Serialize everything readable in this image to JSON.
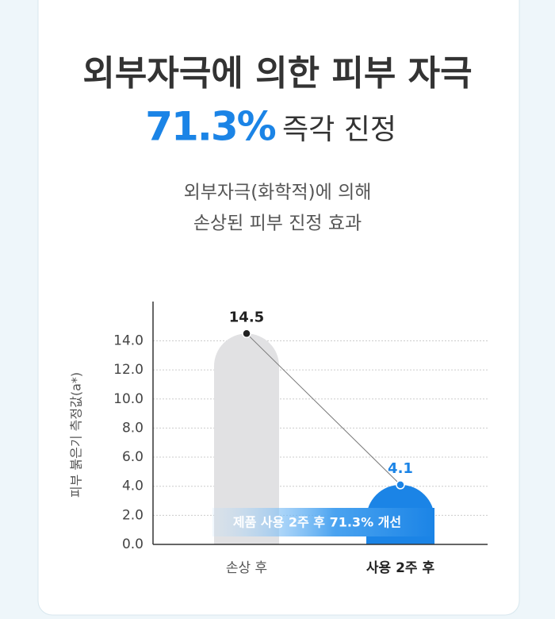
{
  "header": {
    "title": "외부자극에 의한 피부 자극",
    "highlight": "71.3%",
    "title_suffix": "즉각 진정",
    "description": [
      "외부자극(화학적)에 의해",
      "손상된 피부 진정 효과"
    ]
  },
  "chart_data": {
    "type": "bar",
    "ylabel": "피부 붉은기 측정값(a*)",
    "categories": [
      "손상 후",
      "사용 2주 후"
    ],
    "values": [
      14.5,
      4.1
    ],
    "colors": [
      "#e1e1e3",
      "#1b84e6"
    ],
    "ylim": [
      0,
      16.7
    ],
    "yticks": [
      {
        "value": 0,
        "label": "0.0"
      },
      {
        "value": 2,
        "label": "2.0"
      },
      {
        "value": 4,
        "label": "4.0"
      },
      {
        "value": 6,
        "label": "6.0"
      },
      {
        "value": 8,
        "label": "8.0"
      },
      {
        "value": 10,
        "label": "10.0"
      },
      {
        "value": 12,
        "label": "12.0"
      },
      {
        "value": 14,
        "label": "14.0"
      }
    ],
    "grid": true,
    "annotation": "제품 사용 2주 후 71.3% 개선"
  }
}
